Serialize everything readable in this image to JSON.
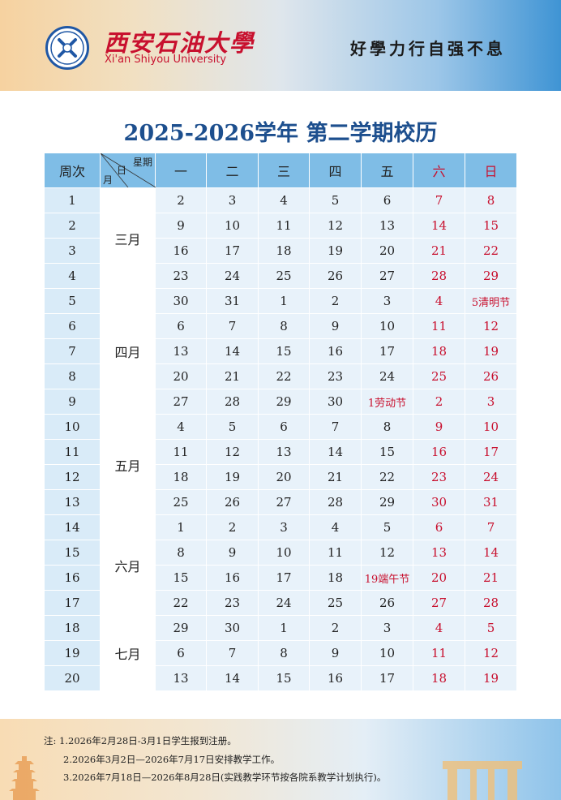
{
  "header": {
    "logo_cn": "西安石油大學",
    "logo_en": "Xi'an Shiyou University",
    "motto": "好學力行自强不息"
  },
  "title": "2025-2026学年 第二学期校历",
  "table": {
    "header": {
      "week_col": "周次",
      "diag_week": "星期",
      "diag_day": "日",
      "diag_month": "月",
      "days": [
        "一",
        "二",
        "三",
        "四",
        "五",
        "六",
        "日"
      ]
    },
    "months": [
      {
        "label": "三月",
        "rows": 4
      },
      {
        "label": "四月",
        "rows": 5
      },
      {
        "label": "五月",
        "rows": 4
      },
      {
        "label": "六月",
        "rows": 4
      },
      {
        "label": "七月",
        "rows": 3
      }
    ],
    "rows": [
      {
        "week": "1",
        "days": [
          "2",
          "3",
          "4",
          "5",
          "6",
          "7",
          "8"
        ]
      },
      {
        "week": "2",
        "days": [
          "9",
          "10",
          "11",
          "12",
          "13",
          "14",
          "15"
        ]
      },
      {
        "week": "3",
        "days": [
          "16",
          "17",
          "18",
          "19",
          "20",
          "21",
          "22"
        ]
      },
      {
        "week": "4",
        "days": [
          "23",
          "24",
          "25",
          "26",
          "27",
          "28",
          "29"
        ]
      },
      {
        "week": "5",
        "days": [
          "30",
          "31",
          "1",
          "2",
          "3",
          "4",
          "5清明节"
        ]
      },
      {
        "week": "6",
        "days": [
          "6",
          "7",
          "8",
          "9",
          "10",
          "11",
          "12"
        ]
      },
      {
        "week": "7",
        "days": [
          "13",
          "14",
          "15",
          "16",
          "17",
          "18",
          "19"
        ]
      },
      {
        "week": "8",
        "days": [
          "20",
          "21",
          "22",
          "23",
          "24",
          "25",
          "26"
        ]
      },
      {
        "week": "9",
        "days": [
          "27",
          "28",
          "29",
          "30",
          "1劳动节",
          "2",
          "3"
        ]
      },
      {
        "week": "10",
        "days": [
          "4",
          "5",
          "6",
          "7",
          "8",
          "9",
          "10"
        ]
      },
      {
        "week": "11",
        "days": [
          "11",
          "12",
          "13",
          "14",
          "15",
          "16",
          "17"
        ]
      },
      {
        "week": "12",
        "days": [
          "18",
          "19",
          "20",
          "21",
          "22",
          "23",
          "24"
        ]
      },
      {
        "week": "13",
        "days": [
          "25",
          "26",
          "27",
          "28",
          "29",
          "30",
          "31"
        ]
      },
      {
        "week": "14",
        "days": [
          "1",
          "2",
          "3",
          "4",
          "5",
          "6",
          "7"
        ]
      },
      {
        "week": "15",
        "days": [
          "8",
          "9",
          "10",
          "11",
          "12",
          "13",
          "14"
        ]
      },
      {
        "week": "16",
        "days": [
          "15",
          "16",
          "17",
          "18",
          "19端午节",
          "20",
          "21"
        ]
      },
      {
        "week": "17",
        "days": [
          "22",
          "23",
          "24",
          "25",
          "26",
          "27",
          "28"
        ]
      },
      {
        "week": "18",
        "days": [
          "29",
          "30",
          "1",
          "2",
          "3",
          "4",
          "5"
        ]
      },
      {
        "week": "19",
        "days": [
          "6",
          "7",
          "8",
          "9",
          "10",
          "11",
          "12"
        ]
      },
      {
        "week": "20",
        "days": [
          "13",
          "14",
          "15",
          "16",
          "17",
          "18",
          "19"
        ]
      }
    ]
  },
  "notes": [
    "注: 1.2026年2月28日-3月1日学生报到注册。",
    "2.2026年3月2日—2026年7月17日安排教学工作。",
    "3.2026年7月18日—2026年8月28日(实践教学环节按各院系教学计划执行)。"
  ],
  "colors": {
    "title": "#1d4f8e",
    "header_cell": "#7fbde6",
    "body_cell": "#e8f2fa",
    "weekend_text": "#c8102e"
  }
}
